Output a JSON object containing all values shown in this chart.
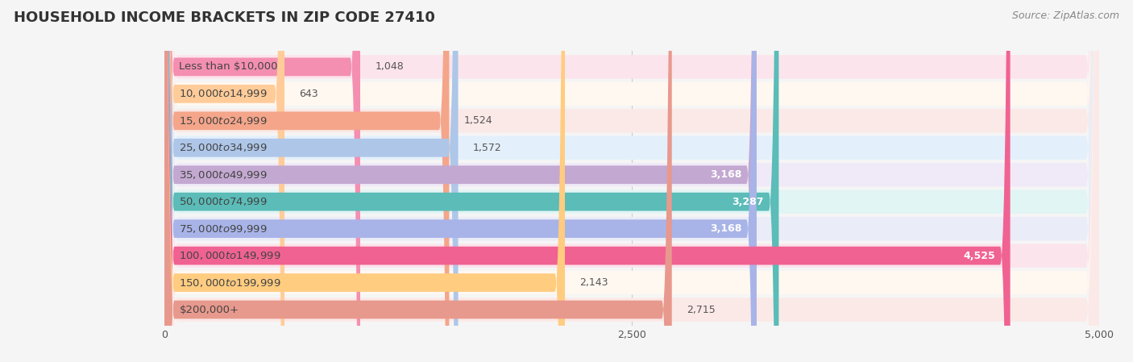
{
  "title": "HOUSEHOLD INCOME BRACKETS IN ZIP CODE 27410",
  "source": "Source: ZipAtlas.com",
  "categories": [
    "Less than $10,000",
    "$10,000 to $14,999",
    "$15,000 to $24,999",
    "$25,000 to $34,999",
    "$35,000 to $49,999",
    "$50,000 to $74,999",
    "$75,000 to $99,999",
    "$100,000 to $149,999",
    "$150,000 to $199,999",
    "$200,000+"
  ],
  "values": [
    1048,
    643,
    1524,
    1572,
    3168,
    3287,
    3168,
    4525,
    2143,
    2715
  ],
  "bar_colors": [
    "#f48fb1",
    "#ffcc99",
    "#f4a58a",
    "#aec6e8",
    "#c3a8d1",
    "#5bbcb8",
    "#a8b4e8",
    "#f06292",
    "#ffcc80",
    "#e8998d"
  ],
  "bar_bg_colors": [
    "#fce4ec",
    "#fff8f0",
    "#fbe9e7",
    "#e3f0fb",
    "#f0eaf8",
    "#e0f5f4",
    "#eaecf8",
    "#fce4ec",
    "#fff8f0",
    "#fbe9e7"
  ],
  "xlim": [
    0,
    5000
  ],
  "xticks": [
    0,
    2500,
    5000
  ],
  "xtick_labels": [
    "0",
    "2,500",
    "5,000"
  ],
  "value_labels": [
    "1,048",
    "643",
    "1,524",
    "1,572",
    "3,168",
    "3,287",
    "3,168",
    "4,525",
    "2,143",
    "2,715"
  ],
  "background_color": "#f5f5f5",
  "title_fontsize": 13,
  "label_fontsize": 9.5,
  "value_fontsize": 9,
  "source_fontsize": 9,
  "value_inside_threshold": 2800
}
